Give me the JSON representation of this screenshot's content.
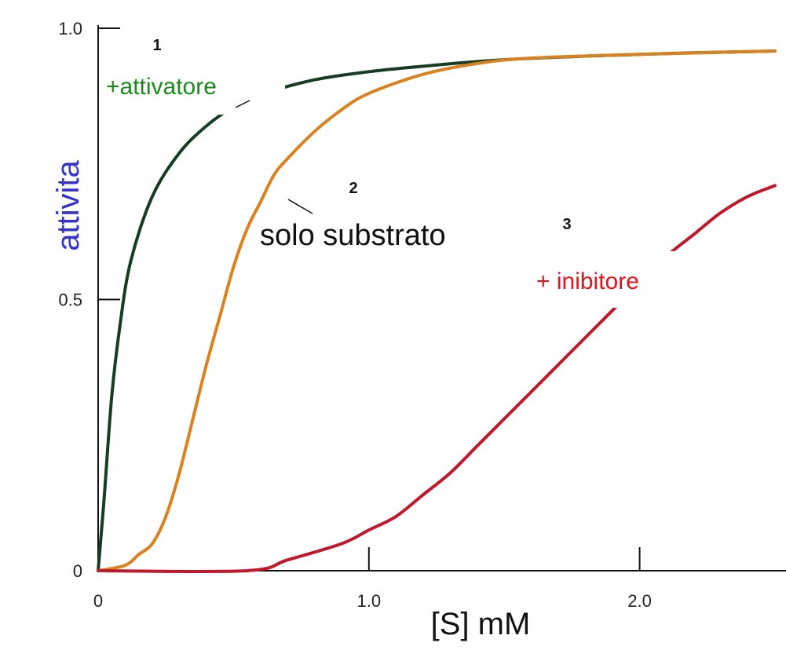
{
  "chart_data": {
    "type": "line",
    "xlabel": "[S] mM",
    "ylabel": "attivita",
    "xlim": [
      0,
      2.5
    ],
    "ylim": [
      0,
      1.0
    ],
    "x_ticks": [
      {
        "value": 0,
        "label": "0"
      },
      {
        "value": 1.0,
        "label": "1.0"
      },
      {
        "value": 2.0,
        "label": "2.0"
      }
    ],
    "y_ticks": [
      {
        "value": 0,
        "label": "0"
      },
      {
        "value": 0.5,
        "label": "0.5"
      },
      {
        "value": 1.0,
        "label": "1.0"
      }
    ],
    "grid": false,
    "series": [
      {
        "number": "1",
        "annotation": "+attivatore",
        "color": "#163d22",
        "annotation_color": "#1a8a1a",
        "x": [
          0,
          0.02,
          0.05,
          0.08,
          0.12,
          0.2,
          0.3,
          0.4,
          0.5,
          0.6,
          0.8,
          1.0,
          1.2,
          1.5,
          2.0,
          2.5
        ],
        "y": [
          0,
          0.12,
          0.32,
          0.45,
          0.57,
          0.69,
          0.77,
          0.82,
          0.855,
          0.878,
          0.905,
          0.92,
          0.93,
          0.942,
          0.952,
          0.958
        ]
      },
      {
        "number": "2",
        "annotation": "solo substrato",
        "color": "#d9821f",
        "annotation_color": "#111111",
        "x": [
          0,
          0.1,
          0.15,
          0.2,
          0.25,
          0.3,
          0.35,
          0.4,
          0.45,
          0.5,
          0.55,
          0.6,
          0.65,
          0.7,
          0.8,
          0.9,
          1.0,
          1.2,
          1.4,
          1.6,
          2.0,
          2.5
        ],
        "y": [
          0,
          0.01,
          0.03,
          0.05,
          0.1,
          0.18,
          0.28,
          0.38,
          0.47,
          0.56,
          0.63,
          0.68,
          0.73,
          0.76,
          0.81,
          0.85,
          0.88,
          0.915,
          0.935,
          0.945,
          0.952,
          0.958
        ]
      },
      {
        "number": "3",
        "annotation": "+ inibitore",
        "color": "#c0182a",
        "annotation_color": "#e0141e",
        "x": [
          0,
          0.55,
          0.7,
          0.9,
          1.0,
          1.1,
          1.2,
          1.3,
          1.4,
          1.5,
          1.6,
          1.7,
          1.8,
          1.9,
          2.0,
          2.1,
          2.2,
          2.3,
          2.4,
          2.5
        ],
        "y": [
          0,
          0.0,
          0.02,
          0.05,
          0.075,
          0.1,
          0.14,
          0.18,
          0.23,
          0.28,
          0.33,
          0.38,
          0.43,
          0.48,
          0.53,
          0.58,
          0.62,
          0.66,
          0.69,
          0.71
        ]
      }
    ]
  }
}
